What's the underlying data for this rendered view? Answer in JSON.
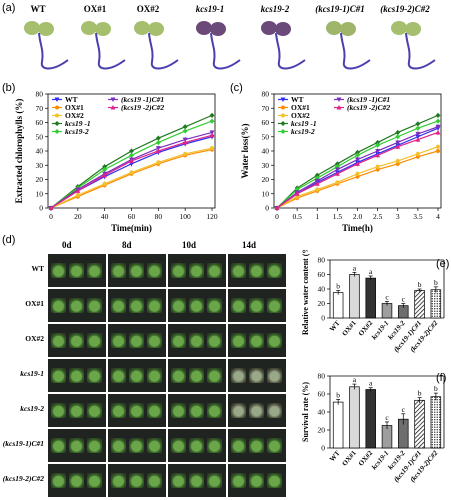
{
  "panel_a": {
    "letter": "(a)",
    "labels": [
      "WT",
      "OX#1",
      "OX#2",
      "kcs19-1",
      "kcs19-2",
      "(kcs19-1)C#1",
      "(kcs19-2)C#2"
    ]
  },
  "colors": {
    "WT": "#2f2ff0",
    "OX1": "#ff8c00",
    "OX2": "#f2c12e",
    "kcs19_1": "#1f7a1f",
    "kcs19_2": "#33cc33",
    "C1": "#7b2fbf",
    "C2": "#e0218a"
  },
  "chart_data": [
    {
      "letter": "(b)",
      "type": "line",
      "xlabel": "Time(min)",
      "ylabel": "Extracted chlorophylls (%)",
      "x": [
        0,
        20,
        40,
        60,
        80,
        100,
        120
      ],
      "ylim": [
        0,
        80
      ],
      "yticks": [
        0,
        10,
        20,
        30,
        40,
        50,
        60,
        70,
        80
      ],
      "legend": [
        "WT",
        "OX#1",
        "OX#2",
        "kcs19 -1",
        "kcs19-2",
        "(kcs19 -1)C#1",
        "(kcs19 -2)C#2"
      ],
      "series": [
        {
          "name": "WT",
          "values": [
            0,
            12,
            22,
            31,
            39,
            45,
            50
          ]
        },
        {
          "name": "OX#1",
          "values": [
            0,
            8,
            16,
            24,
            31,
            37,
            41
          ]
        },
        {
          "name": "OX#2",
          "values": [
            0,
            9,
            17,
            25,
            32,
            38,
            42
          ]
        },
        {
          "name": "kcs19 -1",
          "values": [
            0,
            15,
            29,
            40,
            49,
            57,
            65
          ]
        },
        {
          "name": "kcs19-2",
          "values": [
            0,
            14,
            27,
            37,
            46,
            54,
            61
          ]
        },
        {
          "name": "(kcs19 -1)C#1",
          "values": [
            0,
            13,
            24,
            34,
            42,
            48,
            53
          ]
        },
        {
          "name": "(kcs19 -2)C#2",
          "values": [
            0,
            12,
            23,
            33,
            40,
            46,
            51
          ]
        }
      ]
    },
    {
      "letter": "(c)",
      "type": "line",
      "xlabel": "Time(h)",
      "ylabel": "Water loss(%)",
      "x": [
        0,
        0.5,
        1,
        1.5,
        2,
        2.5,
        3,
        3.5,
        4
      ],
      "xticklabels": [
        "0",
        "0.5",
        "1",
        "1.5",
        "2.0",
        "2.5",
        "3",
        "3.5",
        "4"
      ],
      "ylim": [
        0,
        80
      ],
      "yticks": [
        0,
        10,
        20,
        30,
        40,
        50,
        60,
        70,
        80
      ],
      "legend": [
        "WT",
        "OX#1",
        "OX#2",
        "kcs19 -1",
        "kcs19-2",
        "(kcs19 -1)C#1",
        "(kcs19 -2)C#2"
      ],
      "series": [
        {
          "name": "WT",
          "values": [
            0,
            10,
            18,
            25,
            32,
            38,
            44,
            50,
            56
          ]
        },
        {
          "name": "OX#1",
          "values": [
            0,
            7,
            12,
            17,
            22,
            27,
            31,
            36,
            40
          ]
        },
        {
          "name": "OX#2",
          "values": [
            0,
            8,
            13,
            18,
            24,
            29,
            33,
            38,
            43
          ]
        },
        {
          "name": "kcs19 -1",
          "values": [
            0,
            14,
            23,
            31,
            39,
            46,
            53,
            59,
            65
          ]
        },
        {
          "name": "kcs19-2",
          "values": [
            0,
            13,
            21,
            29,
            37,
            44,
            50,
            56,
            61
          ]
        },
        {
          "name": "(kcs19 -1)C#1",
          "values": [
            0,
            11,
            19,
            27,
            34,
            40,
            46,
            52,
            57
          ]
        },
        {
          "name": "(kcs19 -2)C#2",
          "values": [
            0,
            10,
            17,
            24,
            31,
            37,
            43,
            48,
            53
          ]
        }
      ]
    },
    {
      "letter": "(e)",
      "type": "bar",
      "ylabel": "Relative water content (%)",
      "categories": [
        "WT",
        "OX#1",
        "OX#2",
        "kcs19-1",
        "kcs19-2",
        "(kcs19-1)C#1",
        "(kcs19-2)C#2"
      ],
      "values": [
        35,
        60,
        55,
        20,
        17,
        38,
        39
      ],
      "errors": [
        3,
        3,
        3,
        3,
        3,
        2,
        4
      ],
      "letters": [
        "b",
        "a",
        "a",
        "c",
        "c",
        "b",
        "b"
      ],
      "ylim": [
        0,
        80
      ],
      "yticks": [
        0,
        20,
        40,
        60,
        80
      ]
    },
    {
      "letter": "(f)",
      "type": "bar",
      "ylabel": "Survival rate (%)",
      "categories": [
        "WT",
        "OX#1",
        "OX#2",
        "kcs19-1",
        "kcs19-2",
        "(kcs19-1)C#1",
        "(kcs19-2)C#2"
      ],
      "values": [
        51,
        68,
        65,
        25,
        32,
        53,
        57
      ],
      "errors": [
        3,
        3,
        2,
        4,
        6,
        3,
        4
      ],
      "letters": [
        "b",
        "a",
        "a",
        "c",
        "c",
        "b",
        "b"
      ],
      "ylim": [
        0,
        80
      ],
      "yticks": [
        0,
        20,
        40,
        60,
        80
      ]
    }
  ],
  "panel_d": {
    "letter": "(d)",
    "days": [
      "0d",
      "8d",
      "10d",
      "14d"
    ],
    "rows": [
      "WT",
      "OX#1",
      "OX#2",
      "kcs19-1",
      "kcs19-2",
      "(kcs19-1)C#1",
      "(kcs19-2)C#2"
    ]
  }
}
